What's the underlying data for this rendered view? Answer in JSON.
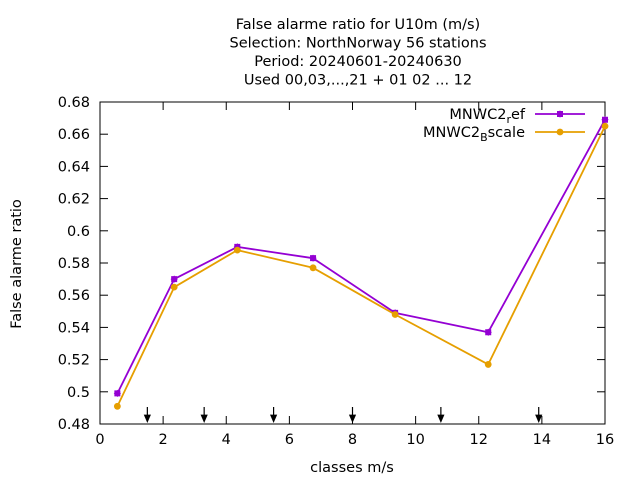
{
  "chart_data": {
    "type": "line",
    "title_lines": [
      "False alarme ratio  for U10m (m/s)",
      "Selection: NorthNorway      56 stations",
      "Period: 20240601-20240630",
      "Used 00,03,...,21 + 01 02 ... 12"
    ],
    "xlabel": "classes m/s",
    "ylabel": "False alarme ratio",
    "xlim": [
      0,
      16
    ],
    "ylim": [
      0.48,
      0.68
    ],
    "xticks": [
      0,
      2,
      4,
      6,
      8,
      10,
      12,
      14,
      16
    ],
    "yticks": [
      0.48,
      0.5,
      0.52,
      0.54,
      0.56,
      0.58,
      0.6,
      0.62,
      0.64,
      0.66,
      0.68
    ],
    "xtick_labels": [
      "0",
      "2",
      "4",
      "6",
      "8",
      "10",
      "12",
      "14",
      "16"
    ],
    "ytick_labels": [
      "0.48",
      "0.5",
      "0.52",
      "0.54",
      "0.56",
      "0.58",
      "0.6",
      "0.62",
      "0.64",
      "0.66",
      "0.68"
    ],
    "class_boundaries": [
      1.5,
      3.3,
      5.5,
      8.0,
      10.8,
      13.9
    ],
    "legend_position": "top-right",
    "series": [
      {
        "name_main": "MNWC2",
        "name_sub": "r",
        "name_tail": "ef",
        "color": "#9400d3",
        "x": [
          0.55,
          2.35,
          4.35,
          6.75,
          9.35,
          12.3,
          16.0
        ],
        "y": [
          0.499,
          0.57,
          0.59,
          0.583,
          0.549,
          0.537,
          0.669
        ]
      },
      {
        "name_main": "MNWC2",
        "name_sub": "B",
        "name_tail": "scale",
        "color": "#e69f00",
        "x": [
          0.55,
          2.35,
          4.35,
          6.75,
          9.35,
          12.3,
          16.0
        ],
        "y": [
          0.491,
          0.565,
          0.588,
          0.577,
          0.548,
          0.517,
          0.665
        ]
      }
    ]
  }
}
